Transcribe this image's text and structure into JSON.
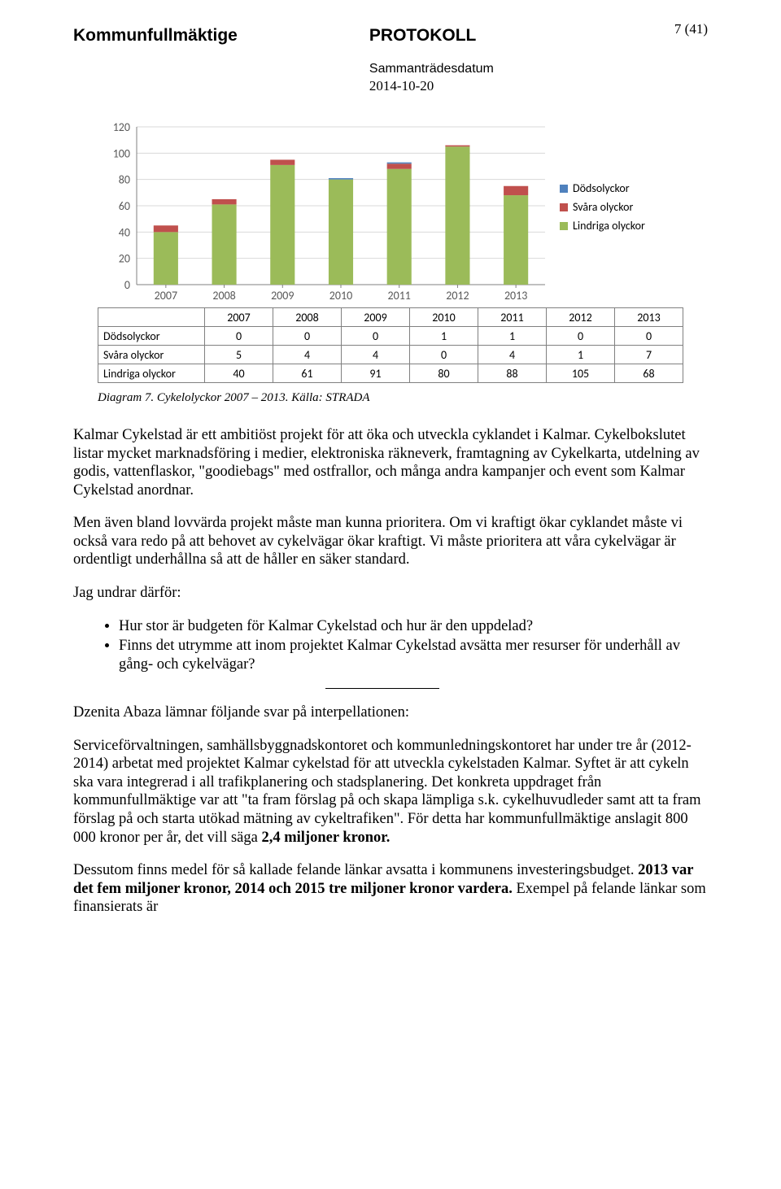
{
  "header": {
    "left": "Kommunfullmäktige",
    "title": "PROTOKOLL",
    "sub1": "Sammanträdesdatum",
    "sub2": "2014-10-20",
    "pagenum": "7 (41)"
  },
  "chart": {
    "type": "stacked-bar",
    "categories": [
      "2007",
      "2008",
      "2009",
      "2010",
      "2011",
      "2012",
      "2013"
    ],
    "series": [
      {
        "name": "Dödsolyckor",
        "color": "#4f81bd",
        "values": [
          0,
          0,
          0,
          1,
          1,
          0,
          0
        ]
      },
      {
        "name": "Svåra olyckor",
        "color": "#c0504d",
        "values": [
          5,
          4,
          4,
          0,
          4,
          1,
          7
        ]
      },
      {
        "name": "Lindriga olyckor",
        "color": "#9bbb59",
        "values": [
          40,
          61,
          91,
          80,
          88,
          105,
          68
        ]
      }
    ],
    "ylim": [
      0,
      120
    ],
    "ytick_step": 20,
    "background_color": "#ffffff",
    "gridline_color": "#d9d9d9",
    "axis_color": "#808080",
    "label_fontsize": 14,
    "bar_width": 0.42,
    "table_headers": [
      "",
      "2007",
      "2008",
      "2009",
      "2010",
      "2011",
      "2012",
      "2013"
    ],
    "caption": "Diagram 7. Cykelolyckor 2007 – 2013. Källa: STRADA"
  },
  "body": {
    "p1": "Kalmar Cykelstad är ett ambitiöst projekt för att öka och utveckla cyklandet i Kalmar. Cykelbokslutet listar mycket marknadsföring i medier, elektroniska räkneverk, framtagning av Cykelkarta, utdelning av godis, vattenflaskor, \"goodiebags\" med ostfrallor, och många andra kampanjer och event som Kalmar Cykelstad anordnar.",
    "p2": "Men även bland lovvärda projekt måste man kunna prioritera. Om vi kraftigt ökar cyklandet måste vi också vara redo på att behovet av cykelvägar ökar kraftigt. Vi måste prioritera att våra cykelvägar är ordentligt underhållna så att de håller en säker standard.",
    "p3": "Jag undrar därför:",
    "bullets": [
      "Hur stor är budgeten för Kalmar Cykelstad och hur är den uppdelad?",
      "Finns det utrymme att inom projektet Kalmar Cykelstad avsätta mer resurser för underhåll av gång- och cykelvägar?"
    ],
    "p4": "Dzenita Abaza lämnar följande svar på interpellationen:",
    "p5a": "Serviceförvaltningen, samhällsbyggnadskontoret och kommunledningskontoret har under tre år (2012-2014) arbetat med projektet Kalmar cykelstad för att utveckla cykelstaden Kalmar. Syftet är att cykeln ska vara integrerad i all trafikplanering och stadsplanering. Det konkreta uppdraget från kommunfullmäktige var att \"ta fram förslag på och skapa lämpliga s.k. cykelhuvudleder samt att ta fram förslag på och starta utökad mätning av cykeltrafiken\". För detta har kommunfullmäktige anslagit 800 000 kronor per år, det vill säga ",
    "p5b": "2,4 miljoner kronor.",
    "p6a": "Dessutom finns medel för så kallade felande länkar avsatta i kommunens investeringsbudget. ",
    "p6b": "2013 var det fem miljoner kronor, 2014 och 2015 tre miljoner kronor vardera.",
    "p6c": " Exempel på felande länkar som finansierats är"
  }
}
